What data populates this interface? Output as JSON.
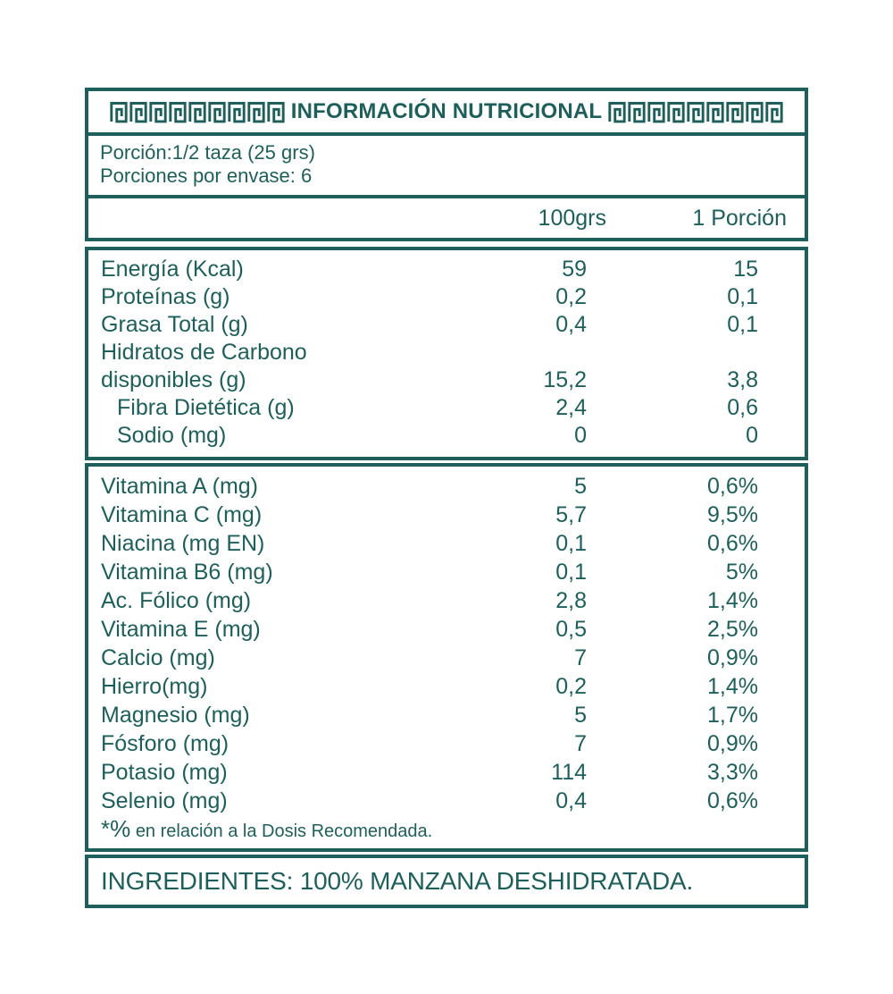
{
  "theme": {
    "accent_color": "#1f5f5b",
    "background_color": "#ffffff"
  },
  "header": {
    "title": "INFORMACIÓN NUTRICIONAL",
    "ornament": "greek-key-icon",
    "ornament_repeat_per_side": 9
  },
  "serving": {
    "portion": "Porción:1/2 taza (25 grs)",
    "per_container": "Porciones por envase: 6"
  },
  "columns": {
    "per_100g": "100grs",
    "per_portion": "1 Porción"
  },
  "macros": {
    "rows": [
      {
        "label": "Energía (Kcal)",
        "per100": "59",
        "porcion": "15"
      },
      {
        "label": "Proteínas (g)",
        "per100": "0,2",
        "porcion": "0,1"
      },
      {
        "label": "Grasa Total (g)",
        "per100": "0,4",
        "porcion": "0,1"
      },
      {
        "label_line1": "Hidratos de Carbono",
        "label_line2": "disponibles (g)",
        "per100": "15,2",
        "porcion": "3,8"
      },
      {
        "label": "Fibra Dietética (g)",
        "indent": true,
        "per100": "2,4",
        "porcion": "0,6"
      },
      {
        "label": "Sodio (mg)",
        "indent": true,
        "per100": "0",
        "porcion": "0"
      }
    ]
  },
  "micros": {
    "rows": [
      {
        "label": "Vitamina A (mg)",
        "per100": "5",
        "porcion": "0,6%"
      },
      {
        "label": "Vitamina C (mg)",
        "per100": "5,7",
        "porcion": "9,5%"
      },
      {
        "label": "Niacina (mg EN)",
        "per100": "0,1",
        "porcion": "0,6%"
      },
      {
        "label": "Vitamina B6 (mg)",
        "per100": "0,1",
        "porcion": "5%"
      },
      {
        "label": "Ac. Fólico (mg)",
        "per100": "2,8",
        "porcion": "1,4%"
      },
      {
        "label": "Vitamina E (mg)",
        "per100": "0,5",
        "porcion": "2,5%"
      },
      {
        "label": "Calcio (mg)",
        "per100": "7",
        "porcion": "0,9%"
      },
      {
        "label": "Hierro(mg)",
        "per100": "0,2",
        "porcion": "1,4%"
      },
      {
        "label": "Magnesio (mg)",
        "per100": "5",
        "porcion": "1,7%"
      },
      {
        "label": "Fósforo (mg)",
        "per100": "7",
        "porcion": "0,9%"
      },
      {
        "label": "Potasio (mg)",
        "per100": "114",
        "porcion": "3,3%"
      },
      {
        "label": "Selenio (mg)",
        "per100": "0,4",
        "porcion": "0,6%"
      }
    ]
  },
  "footnote": {
    "symbol": "*%",
    "text": "en relación a la Dosis Recomendada."
  },
  "ingredients": {
    "text": "INGREDIENTES: 100% MANZANA DESHIDRATADA."
  }
}
